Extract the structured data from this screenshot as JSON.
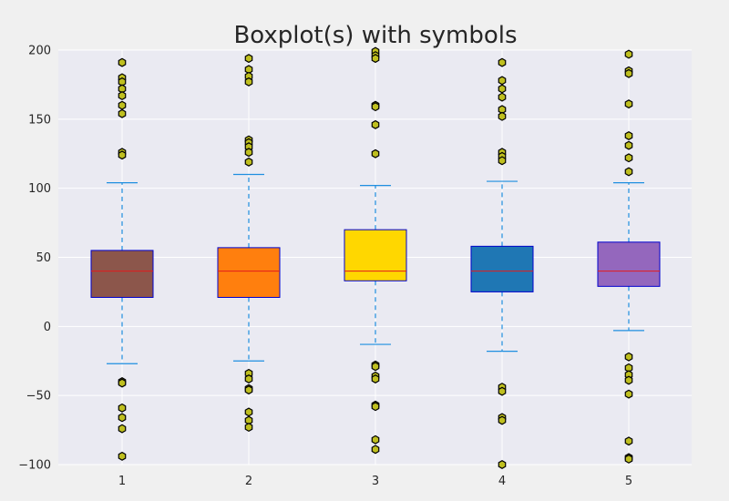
{
  "chart_data": {
    "type": "boxplot",
    "title": "Boxplot(s) with symbols",
    "xlabel": "",
    "ylabel": "",
    "categories": [
      "1",
      "2",
      "3",
      "4",
      "5"
    ],
    "ylim": [
      -100,
      200
    ],
    "yticks": [
      -100,
      -50,
      0,
      50,
      100,
      150,
      200
    ],
    "grid": true,
    "outlier_marker": "hexagon",
    "colors": {
      "figure_bg": "#f0f0f0",
      "axes_bg": "#eaeaf2",
      "grid": "#ffffff",
      "box_edge": "#0000cc",
      "median": "#e31a1c",
      "whisker": "#1f8fe0",
      "outlier_fill": "#bfbf1f",
      "outlier_edge": "#000000"
    },
    "boxes": [
      {
        "label": "1",
        "color": "#8c564b",
        "q1": 21,
        "median": 40,
        "q3": 55,
        "whisker_low": -27,
        "whisker_high": 104,
        "outliers": [
          191,
          180,
          177,
          172,
          167,
          160,
          154,
          126,
          124,
          -40,
          -41,
          -59,
          -66,
          -74,
          -94
        ]
      },
      {
        "label": "2",
        "color": "#ff7f0e",
        "q1": 21,
        "median": 40,
        "q3": 57,
        "whisker_low": -25,
        "whisker_high": 110,
        "outliers": [
          194,
          186,
          181,
          177,
          135,
          133,
          130,
          126,
          119,
          -34,
          -38,
          -45,
          -46,
          -62,
          -68,
          -73
        ]
      },
      {
        "label": "3",
        "color": "#ffd700",
        "q1": 33,
        "median": 40,
        "q3": 70,
        "whisker_low": -13,
        "whisker_high": 102,
        "outliers": [
          199,
          196,
          194,
          160,
          159,
          146,
          125,
          -28,
          -29,
          -36,
          -38,
          -57,
          -58,
          -82,
          -89
        ]
      },
      {
        "label": "4",
        "color": "#1f77b4",
        "q1": 25,
        "median": 40,
        "q3": 58,
        "whisker_low": -18,
        "whisker_high": 105,
        "outliers": [
          191,
          178,
          172,
          166,
          157,
          152,
          126,
          123,
          120,
          -44,
          -47,
          -66,
          -68,
          -100
        ]
      },
      {
        "label": "5",
        "color": "#9467bd",
        "q1": 29,
        "median": 40,
        "q3": 61,
        "whisker_low": -3,
        "whisker_high": 104,
        "outliers": [
          197,
          185,
          183,
          161,
          138,
          131,
          122,
          112,
          -22,
          -30,
          -35,
          -39,
          -49,
          -83,
          -95,
          -96
        ]
      }
    ]
  }
}
